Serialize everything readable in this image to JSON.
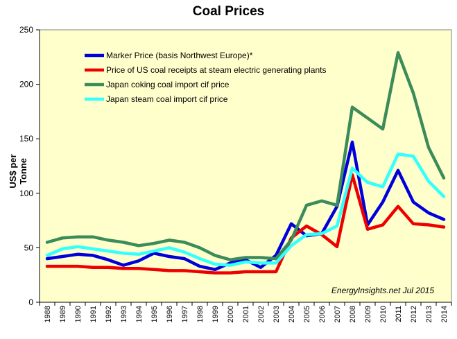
{
  "chart_data": {
    "type": "line",
    "title": "Coal Prices",
    "ylabel": "US$ per Tonne",
    "xlabel": "",
    "ylim": [
      0,
      250
    ],
    "yticks": [
      0,
      50,
      100,
      150,
      200,
      250
    ],
    "grid": false,
    "legend_position": "top-left",
    "plot_background": "#ffffcc",
    "annotation": "EnergyInsights.net Jul 2015",
    "x": [
      "1988",
      "1989",
      "1990",
      "1991",
      "1992",
      "1993",
      "1994",
      "1995",
      "1996",
      "1997",
      "1998",
      "1999",
      "2000",
      "2001",
      "2002",
      "2003",
      "2004",
      "2005",
      "2006",
      "2007",
      "2008",
      "2009",
      "2010",
      "2011",
      "2012",
      "2013",
      "2014"
    ],
    "series": [
      {
        "name": "Marker Price (basis Northwest Europe)*",
        "color": "#0000dd",
        "values": [
          40,
          42,
          44,
          43,
          39,
          34,
          38,
          45,
          42,
          40,
          33,
          30,
          36,
          39,
          32,
          43,
          72,
          61,
          63,
          88,
          147,
          71,
          92,
          121,
          92,
          82,
          76
        ]
      },
      {
        "name": "Price of US coal receipts at steam electric generating plants",
        "color": "#ee0000",
        "values": [
          33,
          33,
          33,
          32,
          32,
          31,
          31,
          30,
          29,
          29,
          28,
          27,
          27,
          28,
          28,
          28,
          59,
          70,
          62,
          51,
          117,
          67,
          71,
          88,
          72,
          71,
          69
        ]
      },
      {
        "name": "Japan coking coal import cif price",
        "color": "#3c8c5a",
        "values": [
          55,
          59,
          60,
          60,
          57,
          55,
          52,
          54,
          57,
          55,
          50,
          43,
          39,
          41,
          41,
          40,
          57,
          89,
          93,
          89,
          179,
          169,
          159,
          229,
          192,
          142,
          114
        ]
      },
      {
        "name": "Japan steam coal import cif price",
        "color": "#33ffff",
        "values": [
          43,
          49,
          51,
          49,
          47,
          45,
          44,
          47,
          50,
          46,
          40,
          35,
          34,
          37,
          36,
          36,
          52,
          62,
          63,
          70,
          123,
          110,
          106,
          136,
          134,
          111,
          97
        ]
      }
    ]
  }
}
